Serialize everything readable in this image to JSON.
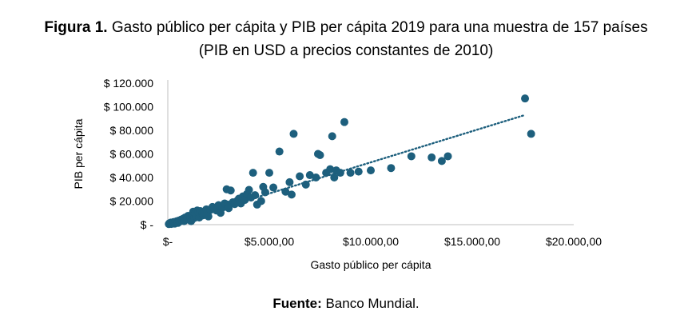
{
  "title": {
    "label": "Figura 1.",
    "text": "Gasto público per cápita y PIB per cápita 2019 para una muestra de 157 países",
    "subtitle": "(PIB en USD a precios constantes de 2010)"
  },
  "source": {
    "label": "Fuente:",
    "text": "Banco Mundial."
  },
  "colors": {
    "points": "#1d5f7d",
    "trend": "#1d5f7d",
    "axis": "#bfbfbf"
  },
  "chart_data": {
    "type": "scatter",
    "title": "Gasto público per cápita y PIB per cápita 2019 para una muestra de 157 países",
    "subtitle": "(PIB en USD a precios constantes de 2010)",
    "xlabel": "Gasto público per cápita",
    "ylabel": "PIB per cápita",
    "xlim": [
      0,
      20000
    ],
    "ylim": [
      0,
      120000
    ],
    "x_ticks": [
      0,
      5000,
      10000,
      15000,
      20000
    ],
    "x_tick_labels": [
      "$-",
      "$5.000,00",
      "$10.000,00",
      "$15.000,00",
      "$20.000,00"
    ],
    "y_ticks": [
      0,
      20000,
      40000,
      60000,
      80000,
      100000,
      120000
    ],
    "y_tick_labels": [
      "$ -",
      "$ 20.000",
      "$ 40.000",
      "$ 60.000",
      "$ 80.000",
      "$ 100.000",
      "$ 120.000"
    ],
    "grid": false,
    "legend": "none",
    "trendline": {
      "style": "dotted",
      "x": [
        0,
        17600
      ],
      "y": [
        0,
        93000
      ]
    },
    "series": [
      {
        "points": [
          [
            50,
            500
          ],
          [
            80,
            1200
          ],
          [
            120,
            800
          ],
          [
            150,
            1800
          ],
          [
            180,
            600
          ],
          [
            220,
            1500
          ],
          [
            250,
            1000
          ],
          [
            280,
            2200
          ],
          [
            300,
            1300
          ],
          [
            340,
            900
          ],
          [
            380,
            2500
          ],
          [
            420,
            1800
          ],
          [
            450,
            3000
          ],
          [
            480,
            2000
          ],
          [
            500,
            1500
          ],
          [
            550,
            3500
          ],
          [
            600,
            2800
          ],
          [
            650,
            4200
          ],
          [
            700,
            3500
          ],
          [
            750,
            5000
          ],
          [
            800,
            3000
          ],
          [
            850,
            6000
          ],
          [
            900,
            4500
          ],
          [
            950,
            5500
          ],
          [
            1000,
            7500
          ],
          [
            1050,
            4000
          ],
          [
            1100,
            6500
          ],
          [
            1150,
            3000
          ],
          [
            1200,
            8500
          ],
          [
            1250,
            11000
          ],
          [
            1300,
            5500
          ],
          [
            1350,
            9500
          ],
          [
            1400,
            7000
          ],
          [
            1450,
            12000
          ],
          [
            1500,
            10500
          ],
          [
            1550,
            6000
          ],
          [
            1600,
            11500
          ],
          [
            1700,
            9000
          ],
          [
            1750,
            8000
          ],
          [
            1800,
            10000
          ],
          [
            1900,
            13000
          ],
          [
            2000,
            7000
          ],
          [
            2100,
            12500
          ],
          [
            2200,
            15000
          ],
          [
            2300,
            14000
          ],
          [
            2400,
            12000
          ],
          [
            2500,
            16500
          ],
          [
            2600,
            10000
          ],
          [
            2700,
            14500
          ],
          [
            2800,
            18000
          ],
          [
            2900,
            30000
          ],
          [
            2950,
            17000
          ],
          [
            3000,
            14000
          ],
          [
            3100,
            29000
          ],
          [
            3200,
            19000
          ],
          [
            3300,
            17500
          ],
          [
            3400,
            20000
          ],
          [
            3500,
            22000
          ],
          [
            3600,
            18000
          ],
          [
            3700,
            24000
          ],
          [
            3800,
            21000
          ],
          [
            3900,
            26000
          ],
          [
            4000,
            29500
          ],
          [
            4100,
            23000
          ],
          [
            4200,
            44000
          ],
          [
            4300,
            25000
          ],
          [
            4400,
            17000
          ],
          [
            4600,
            20000
          ],
          [
            4700,
            32000
          ],
          [
            4800,
            27500
          ],
          [
            5000,
            44000
          ],
          [
            5200,
            31500
          ],
          [
            5500,
            62000
          ],
          [
            5800,
            28000
          ],
          [
            6000,
            36000
          ],
          [
            6100,
            25500
          ],
          [
            6200,
            77000
          ],
          [
            6500,
            41000
          ],
          [
            6800,
            34000
          ],
          [
            7000,
            42000
          ],
          [
            7300,
            40000
          ],
          [
            7400,
            60000
          ],
          [
            7500,
            59000
          ],
          [
            7800,
            44000
          ],
          [
            8000,
            47000
          ],
          [
            8100,
            75000
          ],
          [
            8200,
            40000
          ],
          [
            8300,
            46000
          ],
          [
            8500,
            44000
          ],
          [
            8700,
            87000
          ],
          [
            9000,
            44000
          ],
          [
            9400,
            45000
          ],
          [
            10000,
            46000
          ],
          [
            11000,
            48000
          ],
          [
            12000,
            58000
          ],
          [
            13000,
            57000
          ],
          [
            13500,
            54000
          ],
          [
            13800,
            58000
          ],
          [
            17600,
            107000
          ],
          [
            17900,
            77000
          ]
        ]
      }
    ]
  }
}
